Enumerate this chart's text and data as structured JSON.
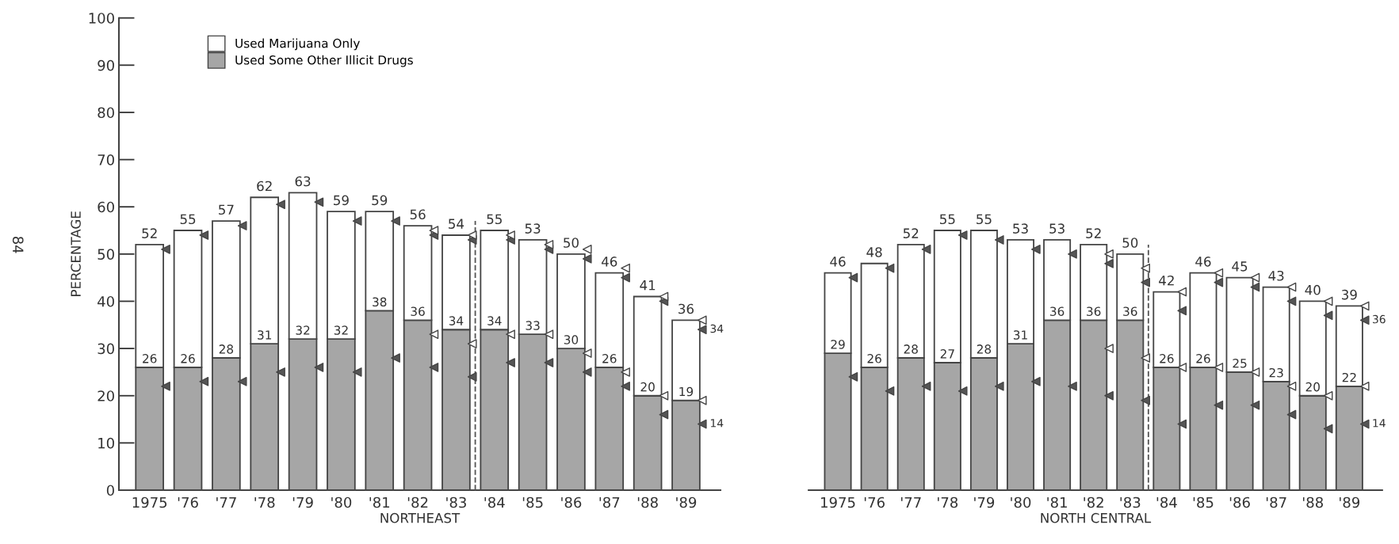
{
  "chart_data": [
    {
      "type": "bar",
      "stacked": true,
      "xlabel": "NORTHEAST",
      "ylabel": "PERCENTAGE",
      "legend": "top left",
      "categories": [
        "1975",
        "'76",
        "'77",
        "'78",
        "'79",
        "'80",
        "'81",
        "'82",
        "'83",
        "'84",
        "'85",
        "'86",
        "'87",
        "'88",
        "'89"
      ],
      "ylim": [
        0,
        100
      ],
      "yticks": [
        0,
        10,
        20,
        30,
        40,
        50,
        60,
        70,
        80,
        90,
        100
      ],
      "series": [
        {
          "name": "Used Some Other Illicit Drugs",
          "color": "#a6a6a6",
          "values": [
            26,
            26,
            28,
            31,
            32,
            32,
            38,
            36,
            34,
            34,
            33,
            30,
            26,
            20,
            19
          ],
          "value_labels": [
            "26",
            "26",
            "28",
            "31",
            "32",
            "32",
            "38",
            "36",
            "34",
            "34",
            "33",
            "30",
            "26",
            "20",
            "19"
          ]
        },
        {
          "name": "Used Marijuana Only",
          "color": "#ffffff",
          "values": [
            26,
            29,
            29,
            31,
            31,
            27,
            21,
            20,
            20,
            21,
            20,
            20,
            20,
            21,
            17
          ]
        },
        {
          "type": "scatter",
          "marker": "triangle",
          "color": "#555555",
          "values": [
            51,
            54,
            56,
            60.5,
            61,
            57,
            57,
            54,
            53,
            53,
            51,
            49,
            45,
            40,
            34
          ],
          "value_labels": [
            null,
            null,
            null,
            null,
            null,
            null,
            null,
            null,
            null,
            null,
            null,
            null,
            null,
            null,
            "34"
          ]
        },
        {
          "type": "scatter",
          "marker": "triangle",
          "color": "#ffffff",
          "values": [
            null,
            null,
            null,
            null,
            null,
            null,
            null,
            55,
            54,
            54,
            52,
            51,
            47,
            41,
            36
          ]
        },
        {
          "type": "scatter",
          "marker": "triangle",
          "color": "#555555",
          "values": [
            22,
            23,
            23,
            25,
            26,
            25,
            28,
            26,
            24,
            27,
            27,
            25,
            22,
            16,
            14
          ],
          "value_labels": [
            null,
            null,
            null,
            null,
            null,
            null,
            null,
            null,
            null,
            null,
            null,
            null,
            null,
            null,
            "14"
          ]
        },
        {
          "type": "scatter",
          "marker": "triangle",
          "color": "#ffffff",
          "values": [
            null,
            null,
            null,
            null,
            null,
            null,
            null,
            33,
            31,
            33,
            33,
            29,
            25,
            20,
            19
          ]
        }
      ],
      "totals": [
        "52",
        "55",
        "57",
        "62",
        "63",
        "59",
        "59",
        "56",
        "54",
        "55",
        "53",
        "50",
        "46",
        "41",
        "36"
      ],
      "annotations": [
        "84"
      ]
    },
    {
      "type": "bar",
      "stacked": true,
      "xlabel": "NORTH CENTRAL",
      "tick_labels": "x",
      "categories": [
        "1975",
        "'76",
        "'77",
        "'78",
        "'79",
        "'80",
        "'81",
        "'82",
        "'83",
        "'84",
        "'85",
        "'86",
        "'87",
        "'88",
        "'89"
      ],
      "ylim": [
        0,
        100
      ],
      "series": [
        {
          "color": "#a6a6a6",
          "values": [
            29,
            26,
            28,
            27,
            28,
            31,
            36,
            36,
            36,
            26,
            26,
            25,
            23,
            20,
            22
          ],
          "value_labels": [
            "29",
            "26",
            "28",
            "27",
            "28",
            "31",
            "36",
            "36",
            "36",
            "26",
            "26",
            "25",
            "23",
            "20",
            "22"
          ]
        },
        {
          "color": "#ffffff",
          "values": [
            17,
            22,
            24,
            28,
            27,
            22,
            17,
            16,
            14,
            16,
            20,
            20,
            20,
            20,
            17
          ]
        },
        {
          "type": "scatter",
          "marker": "triangle",
          "color": "#555555",
          "values": [
            45,
            47,
            51,
            54,
            53,
            51,
            50,
            48,
            44,
            38,
            44,
            43,
            40,
            37,
            36
          ],
          "value_labels": [
            null,
            null,
            null,
            null,
            null,
            null,
            null,
            null,
            null,
            null,
            null,
            null,
            null,
            null,
            "36"
          ]
        },
        {
          "type": "scatter",
          "marker": "triangle",
          "color": "#ffffff",
          "values": [
            null,
            null,
            null,
            null,
            null,
            null,
            null,
            50,
            47,
            42,
            46,
            45,
            43,
            40,
            39
          ]
        },
        {
          "type": "scatter",
          "marker": "triangle",
          "color": "#555555",
          "values": [
            24,
            21,
            22,
            21,
            22,
            23,
            22,
            20,
            19,
            14,
            18,
            18,
            16,
            13,
            14
          ],
          "value_labels": [
            null,
            null,
            null,
            null,
            null,
            null,
            null,
            null,
            null,
            null,
            null,
            null,
            null,
            null,
            "14"
          ]
        },
        {
          "type": "scatter",
          "marker": "triangle",
          "color": "#ffffff",
          "values": [
            null,
            null,
            null,
            null,
            null,
            null,
            null,
            30,
            28,
            26,
            26,
            25,
            22,
            20,
            22
          ]
        }
      ],
      "totals": [
        "46",
        "48",
        "52",
        "55",
        "55",
        "53",
        "53",
        "52",
        "50",
        "42",
        "46",
        "45",
        "43",
        "40",
        "39"
      ]
    }
  ]
}
